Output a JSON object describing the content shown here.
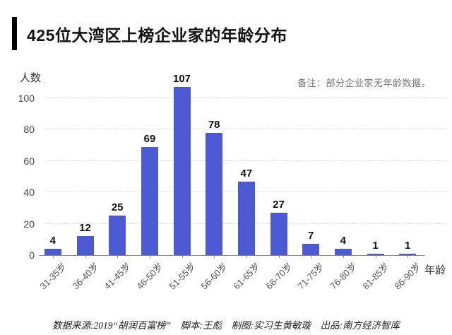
{
  "header": {
    "title": "425位大湾区上榜企业家的年龄分布"
  },
  "note": {
    "text": "备注：部分企业家无年龄数据。"
  },
  "footer": {
    "text": "数据来源:2019“胡润百富榜”　脚本:王彪　制图:实习生黄敏璇　出品:南方经济智库"
  },
  "colors": {
    "bar": "#4b5ad2",
    "grid": "#d9d9d9",
    "axis": "#888888",
    "title_marker": "#000000"
  },
  "chart_data": {
    "type": "bar",
    "categories": [
      "31-35岁",
      "36-40岁",
      "41-45岁",
      "46-50岁",
      "51-55岁",
      "56-60岁",
      "61-65岁",
      "66-70岁",
      "71-75岁",
      "76-80岁",
      "81-85岁",
      "86-90岁"
    ],
    "values": [
      4,
      12,
      25,
      69,
      107,
      78,
      47,
      27,
      7,
      4,
      1,
      1
    ],
    "title": "425位大湾区上榜企业家的年龄分布",
    "xlabel": "年龄",
    "ylabel": "人数",
    "ylim": [
      0,
      100
    ],
    "yticks": [
      0,
      20,
      40,
      60,
      80,
      100
    ],
    "grid": "horizontal-dashed",
    "value_labels": true,
    "legend": "none"
  }
}
